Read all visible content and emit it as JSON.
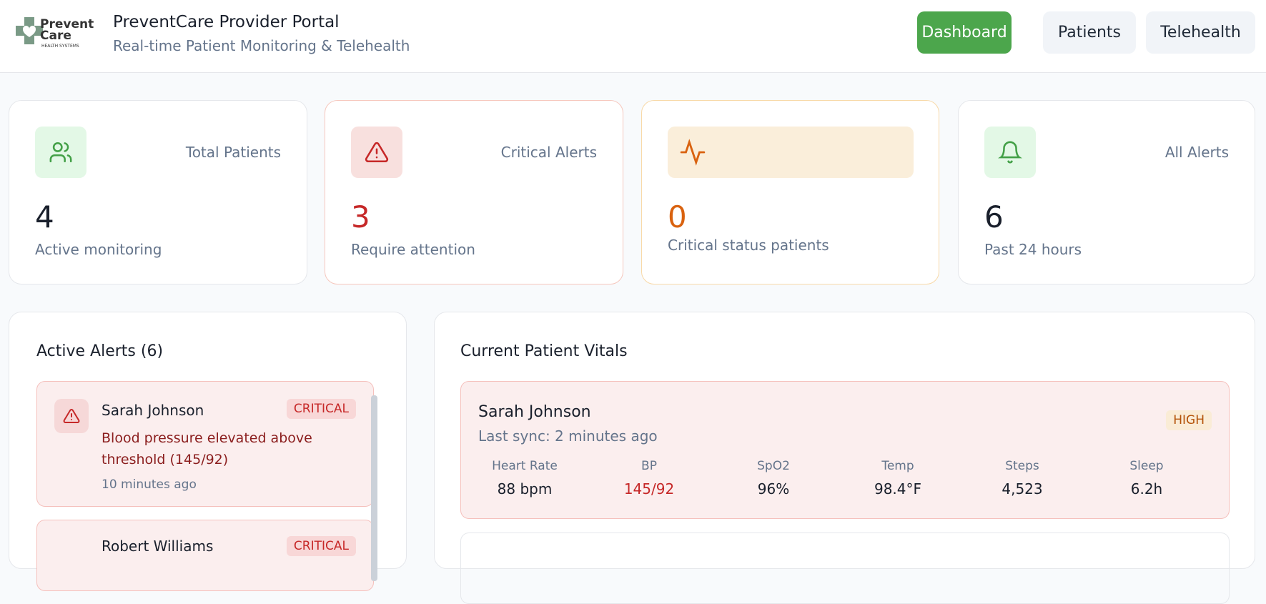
{
  "header": {
    "logo": {
      "line1": "Prevent",
      "line2": "Care",
      "line3": "HEALTH SYSTEMS"
    },
    "title": "PreventCare Provider Portal",
    "subtitle": "Real-time Patient Monitoring & Telehealth",
    "nav": [
      "Dashboard",
      "Patients",
      "Telehealth"
    ]
  },
  "stats": [
    {
      "label": "Total Patients",
      "value": 4,
      "caption": "Active monitoring"
    },
    {
      "label": "Critical Alerts",
      "value": 3,
      "caption": "Require attention"
    },
    {
      "value": 0,
      "caption": "Critical status patients"
    },
    {
      "label": "All Alerts",
      "value": 6,
      "caption": "Past 24 hours"
    }
  ],
  "alerts": {
    "title": "Active Alerts (6)",
    "items": [
      {
        "patient": "Sarah Johnson",
        "badge": "CRITICAL",
        "message": "Blood pressure elevated above threshold (145/92)",
        "time": "10 minutes ago"
      },
      {
        "patient": "Robert Williams",
        "badge": "CRITICAL"
      }
    ]
  },
  "vitals": {
    "title": "Current Patient Vitals",
    "patients": [
      {
        "name": "Sarah Johnson",
        "sync": "Last sync: 2 minutes ago",
        "badge": "HIGH",
        "metrics": [
          {
            "label": "Heart Rate",
            "value": "88 bpm"
          },
          {
            "label": "BP",
            "value": "145/92"
          },
          {
            "label": "SpO2",
            "value": "96%"
          },
          {
            "label": "Temp",
            "value": "98.4°F"
          },
          {
            "label": "Steps",
            "value": "4,523"
          },
          {
            "label": "Sleep",
            "value": "6.2h"
          }
        ]
      }
    ]
  }
}
